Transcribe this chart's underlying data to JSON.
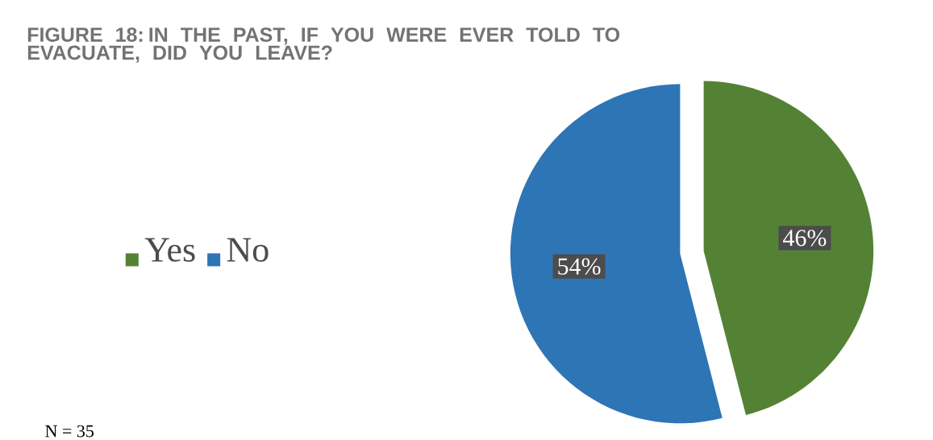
{
  "chart_data": {
    "type": "pie",
    "title": "FIGURE 18: IN THE PAST, IF YOU WERE EVER TOLD TO EVACUATE, DID YOU LEAVE?",
    "categories": [
      "Yes",
      "No"
    ],
    "values": [
      46,
      54
    ],
    "value_labels": [
      "46%",
      "54%"
    ],
    "colors": [
      "#548235",
      "#2e75b6"
    ],
    "legend": "left",
    "annotations": [
      "N = 35"
    ]
  }
}
